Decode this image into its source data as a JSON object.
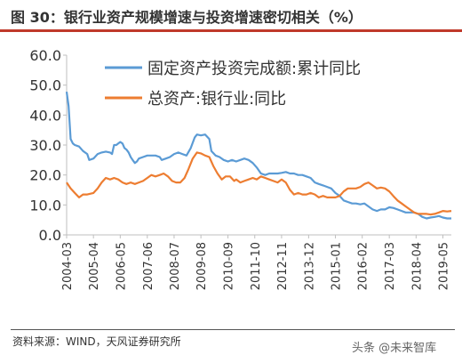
{
  "title": "图 30：银行业资产规模增速与投资增速密切相关（%）",
  "source": "资料来源：WIND，天风证券研究所",
  "watermark": "头条 @未来智库",
  "colors": {
    "fixed_investment": "#5b9bd5",
    "bank_assets": "#ed7d31",
    "title_rule": "#c0392b"
  },
  "chart_data": {
    "type": "line",
    "ylim": [
      0,
      60
    ],
    "yticks": [
      "0.0",
      "10.0",
      "20.0",
      "30.0",
      "40.0",
      "50.0",
      "60.0"
    ],
    "xlim": [
      2004.17,
      2019.67
    ],
    "xticks": [
      {
        "label": "2004-03",
        "x": 2004.17
      },
      {
        "label": "2005-04",
        "x": 2005.25
      },
      {
        "label": "2006-05",
        "x": 2006.33
      },
      {
        "label": "2007-06",
        "x": 2007.42
      },
      {
        "label": "2008-07",
        "x": 2008.5
      },
      {
        "label": "2009-08",
        "x": 2009.58
      },
      {
        "label": "2010-09",
        "x": 2010.67
      },
      {
        "label": "2011-10",
        "x": 2011.75
      },
      {
        "label": "2012-11",
        "x": 2012.83
      },
      {
        "label": "2013-12",
        "x": 2013.92
      },
      {
        "label": "2015-01",
        "x": 2015.0
      },
      {
        "label": "2016-02",
        "x": 2016.08
      },
      {
        "label": "2017-03",
        "x": 2017.17
      },
      {
        "label": "2018-04",
        "x": 2018.25
      },
      {
        "label": "2019-05",
        "x": 2019.33
      }
    ],
    "grid": false,
    "legend_position": "top-center",
    "series": [
      {
        "name": "固定资产投资完成额:累计同比",
        "points": [
          [
            2004.17,
            47.8
          ],
          [
            2004.25,
            43
          ],
          [
            2004.33,
            32
          ],
          [
            2004.42,
            30.5
          ],
          [
            2004.5,
            30
          ],
          [
            2004.67,
            29.5
          ],
          [
            2004.83,
            28
          ],
          [
            2005.0,
            27
          ],
          [
            2005.08,
            25
          ],
          [
            2005.25,
            25.5
          ],
          [
            2005.42,
            27
          ],
          [
            2005.58,
            27.5
          ],
          [
            2005.75,
            27.8
          ],
          [
            2005.92,
            27.5
          ],
          [
            2006.0,
            27
          ],
          [
            2006.08,
            30
          ],
          [
            2006.17,
            30
          ],
          [
            2006.25,
            30.5
          ],
          [
            2006.33,
            31
          ],
          [
            2006.42,
            30.5
          ],
          [
            2006.5,
            29
          ],
          [
            2006.58,
            28.5
          ],
          [
            2006.67,
            27.5
          ],
          [
            2006.75,
            26
          ],
          [
            2006.83,
            25
          ],
          [
            2006.92,
            24
          ],
          [
            2007.0,
            24.5
          ],
          [
            2007.08,
            25.5
          ],
          [
            2007.25,
            26
          ],
          [
            2007.42,
            26.5
          ],
          [
            2007.58,
            26.5
          ],
          [
            2007.75,
            26.5
          ],
          [
            2007.92,
            26
          ],
          [
            2008.0,
            25
          ],
          [
            2008.17,
            25.5
          ],
          [
            2008.33,
            26
          ],
          [
            2008.5,
            27
          ],
          [
            2008.67,
            27.5
          ],
          [
            2008.83,
            27
          ],
          [
            2009.0,
            26.5
          ],
          [
            2009.17,
            29
          ],
          [
            2009.33,
            32.5
          ],
          [
            2009.42,
            33.5
          ],
          [
            2009.58,
            33.2
          ],
          [
            2009.75,
            33.5
          ],
          [
            2009.92,
            32
          ],
          [
            2010.0,
            28
          ],
          [
            2010.17,
            26.5
          ],
          [
            2010.33,
            26
          ],
          [
            2010.5,
            25
          ],
          [
            2010.67,
            24.5
          ],
          [
            2010.83,
            25
          ],
          [
            2011.0,
            24.5
          ],
          [
            2011.17,
            25
          ],
          [
            2011.33,
            25.5
          ],
          [
            2011.5,
            25
          ],
          [
            2011.67,
            24
          ],
          [
            2011.83,
            22.5
          ],
          [
            2012.0,
            20.5
          ],
          [
            2012.17,
            20
          ],
          [
            2012.33,
            20.5
          ],
          [
            2012.5,
            20.5
          ],
          [
            2012.67,
            20.5
          ],
          [
            2012.83,
            20.7
          ],
          [
            2013.0,
            21
          ],
          [
            2013.17,
            20.5
          ],
          [
            2013.33,
            20.5
          ],
          [
            2013.5,
            20
          ],
          [
            2013.67,
            20
          ],
          [
            2013.83,
            19.5
          ],
          [
            2014.0,
            19
          ],
          [
            2014.17,
            17.5
          ],
          [
            2014.33,
            17
          ],
          [
            2014.5,
            16.5
          ],
          [
            2014.67,
            16
          ],
          [
            2014.83,
            15.5
          ],
          [
            2015.0,
            14
          ],
          [
            2015.17,
            13
          ],
          [
            2015.33,
            11.5
          ],
          [
            2015.5,
            11
          ],
          [
            2015.67,
            10.5
          ],
          [
            2015.83,
            10.5
          ],
          [
            2016.0,
            10.2
          ],
          [
            2016.17,
            10.5
          ],
          [
            2016.33,
            9.5
          ],
          [
            2016.5,
            8.5
          ],
          [
            2016.67,
            8
          ],
          [
            2016.83,
            8.5
          ],
          [
            2017.0,
            8.5
          ],
          [
            2017.17,
            9.2
          ],
          [
            2017.33,
            9
          ],
          [
            2017.5,
            8.5
          ],
          [
            2017.67,
            8
          ],
          [
            2017.83,
            7.5
          ],
          [
            2018.0,
            7.5
          ],
          [
            2018.17,
            7.5
          ],
          [
            2018.33,
            7
          ],
          [
            2018.5,
            6
          ],
          [
            2018.67,
            5.5
          ],
          [
            2018.83,
            5.8
          ],
          [
            2019.0,
            6
          ],
          [
            2019.17,
            6.3
          ],
          [
            2019.33,
            5.8
          ],
          [
            2019.5,
            5.5
          ],
          [
            2019.67,
            5.5
          ]
        ]
      },
      {
        "name": "总资产:银行业:同比",
        "points": [
          [
            2004.17,
            17.5
          ],
          [
            2004.33,
            15.5
          ],
          [
            2004.5,
            14
          ],
          [
            2004.67,
            12.5
          ],
          [
            2004.83,
            13.5
          ],
          [
            2005.0,
            13.5
          ],
          [
            2005.25,
            14
          ],
          [
            2005.42,
            15.5
          ],
          [
            2005.58,
            17.5
          ],
          [
            2005.75,
            19
          ],
          [
            2005.92,
            18.5
          ],
          [
            2006.08,
            19
          ],
          [
            2006.25,
            18.5
          ],
          [
            2006.42,
            17.5
          ],
          [
            2006.58,
            17
          ],
          [
            2006.75,
            17.5
          ],
          [
            2006.92,
            17
          ],
          [
            2007.08,
            17.5
          ],
          [
            2007.25,
            18
          ],
          [
            2007.42,
            19
          ],
          [
            2007.58,
            20
          ],
          [
            2007.75,
            19.5
          ],
          [
            2007.92,
            20
          ],
          [
            2008.08,
            20.5
          ],
          [
            2008.25,
            19.5
          ],
          [
            2008.42,
            18
          ],
          [
            2008.58,
            17.5
          ],
          [
            2008.75,
            17.5
          ],
          [
            2008.92,
            19
          ],
          [
            2009.08,
            22
          ],
          [
            2009.25,
            25.5
          ],
          [
            2009.42,
            27.5
          ],
          [
            2009.58,
            27.2
          ],
          [
            2009.75,
            26.5
          ],
          [
            2009.92,
            26
          ],
          [
            2010.08,
            23
          ],
          [
            2010.25,
            20.5
          ],
          [
            2010.42,
            18.5
          ],
          [
            2010.58,
            19.5
          ],
          [
            2010.75,
            19.5
          ],
          [
            2010.92,
            18
          ],
          [
            2011.0,
            18.5
          ],
          [
            2011.17,
            17.5
          ],
          [
            2011.33,
            18
          ],
          [
            2011.5,
            18.5
          ],
          [
            2011.67,
            19
          ],
          [
            2011.83,
            18.5
          ],
          [
            2012.0,
            19.5
          ],
          [
            2012.17,
            19
          ],
          [
            2012.33,
            18.5
          ],
          [
            2012.5,
            18
          ],
          [
            2012.67,
            17.5
          ],
          [
            2012.83,
            18.5
          ],
          [
            2013.0,
            17.5
          ],
          [
            2013.17,
            15
          ],
          [
            2013.33,
            13.5
          ],
          [
            2013.5,
            14
          ],
          [
            2013.67,
            13.5
          ],
          [
            2013.83,
            13.5
          ],
          [
            2014.0,
            14
          ],
          [
            2014.17,
            13.5
          ],
          [
            2014.33,
            12.5
          ],
          [
            2014.5,
            13
          ],
          [
            2014.67,
            12.5
          ],
          [
            2014.83,
            12.5
          ],
          [
            2015.0,
            12.5
          ],
          [
            2015.17,
            13
          ],
          [
            2015.33,
            14.5
          ],
          [
            2015.5,
            15.5
          ],
          [
            2015.67,
            15.5
          ],
          [
            2015.83,
            15.5
          ],
          [
            2016.0,
            16
          ],
          [
            2016.17,
            17
          ],
          [
            2016.33,
            17.5
          ],
          [
            2016.5,
            16.5
          ],
          [
            2016.67,
            15.5
          ],
          [
            2016.83,
            15.8
          ],
          [
            2017.0,
            15.5
          ],
          [
            2017.17,
            14.5
          ],
          [
            2017.33,
            13
          ],
          [
            2017.5,
            11.5
          ],
          [
            2017.67,
            10.5
          ],
          [
            2017.83,
            9.5
          ],
          [
            2018.0,
            8.5
          ],
          [
            2018.17,
            7.5
          ],
          [
            2018.33,
            7
          ],
          [
            2018.5,
            7
          ],
          [
            2018.67,
            7
          ],
          [
            2018.83,
            6.8
          ],
          [
            2019.0,
            7
          ],
          [
            2019.17,
            7.5
          ],
          [
            2019.33,
            8
          ],
          [
            2019.5,
            7.8
          ],
          [
            2019.67,
            8
          ]
        ]
      }
    ]
  }
}
